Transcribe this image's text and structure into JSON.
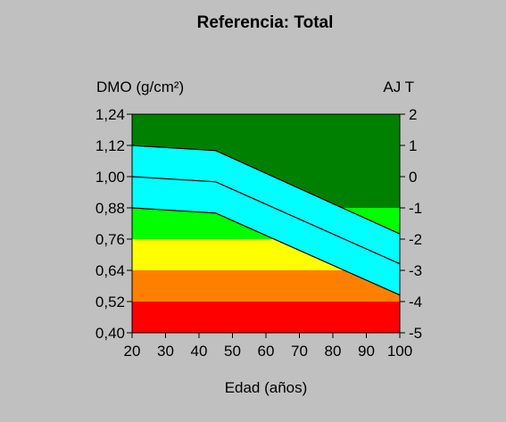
{
  "chart_data": {
    "type": "area",
    "title": "Referencia: Total",
    "xlabel": "Edad (años)",
    "ylabel": "DMO (g/cm²)",
    "y2label": "AJ T",
    "xlim": [
      20,
      100
    ],
    "ylim": [
      0.4,
      1.24
    ],
    "y2lim": [
      -5,
      2
    ],
    "x_ticks": [
      20,
      30,
      40,
      50,
      60,
      70,
      80,
      90,
      100
    ],
    "x_tick_labels": [
      "20",
      "30",
      "40",
      "50",
      "60",
      "70",
      "80",
      "90",
      "100"
    ],
    "y_ticks": [
      0.4,
      0.52,
      0.64,
      0.76,
      0.88,
      1.0,
      1.12,
      1.24
    ],
    "y_tick_labels": [
      "0,40",
      "0,52",
      "0,64",
      "0,76",
      "0,88",
      "1,00",
      "1,12",
      "1,24"
    ],
    "y2_ticks": [
      -5,
      -4,
      -3,
      -2,
      -1,
      0,
      1,
      2
    ],
    "y2_tick_labels": [
      "-5",
      "-4",
      "-3",
      "-2",
      "-1",
      "0",
      "1",
      "2"
    ],
    "grid": false,
    "bands": [
      {
        "name": "",
        "y_from": 0.4,
        "y_to": 0.52,
        "color": "#ff0000"
      },
      {
        "name": "",
        "y_from": 0.52,
        "y_to": 0.64,
        "color": "#ff8000"
      },
      {
        "name": "",
        "y_from": 0.64,
        "y_to": 0.76,
        "color": "#ffff00"
      },
      {
        "name": "",
        "y_from": 0.76,
        "y_to": 0.88,
        "color": "#00ff00"
      },
      {
        "name": "",
        "y_from": 0.88,
        "y_to": 1.24,
        "color": "#008000"
      }
    ],
    "reference_band_color": "#00ffff",
    "series": [
      {
        "name": "",
        "x": [
          20,
          45,
          100
        ],
        "values": [
          1.12,
          1.1,
          0.78
        ]
      },
      {
        "name": "",
        "x": [
          20,
          45,
          100
        ],
        "values": [
          1.0,
          0.98,
          0.665
        ]
      },
      {
        "name": "",
        "x": [
          20,
          45,
          100
        ],
        "values": [
          0.88,
          0.86,
          0.545
        ]
      }
    ]
  }
}
